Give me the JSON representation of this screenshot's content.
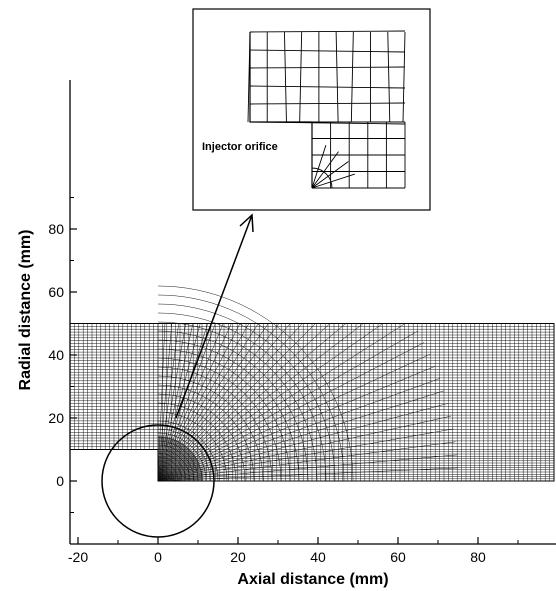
{
  "axes": {
    "x_title": "Axial distance (mm)",
    "y_title": "Radial distance (mm)",
    "x_ticks": [
      {
        "value": -20,
        "label": "-20"
      },
      {
        "value": 0,
        "label": "0"
      },
      {
        "value": 20,
        "label": "20"
      },
      {
        "value": 40,
        "label": "40"
      },
      {
        "value": 60,
        "label": "60"
      },
      {
        "value": 80,
        "label": "80"
      }
    ],
    "y_ticks": [
      {
        "value": 0,
        "label": "0"
      },
      {
        "value": 20,
        "label": "20"
      },
      {
        "value": 40,
        "label": "40"
      },
      {
        "value": 60,
        "label": "60"
      },
      {
        "value": 80,
        "label": "80"
      }
    ],
    "x_range": [
      -22,
      100
    ],
    "y_range": [
      -17,
      100
    ]
  },
  "inset": {
    "label": "Injector orifice"
  },
  "mesh": {
    "x_extent": [
      -22,
      100
    ],
    "y_extent": [
      10,
      50
    ],
    "step_corner": [
      0,
      0
    ],
    "zoom_circle_center": [
      0,
      0
    ],
    "zoom_circle_radius": 14
  },
  "colors": {
    "line": "#000000",
    "background": "#ffffff"
  }
}
